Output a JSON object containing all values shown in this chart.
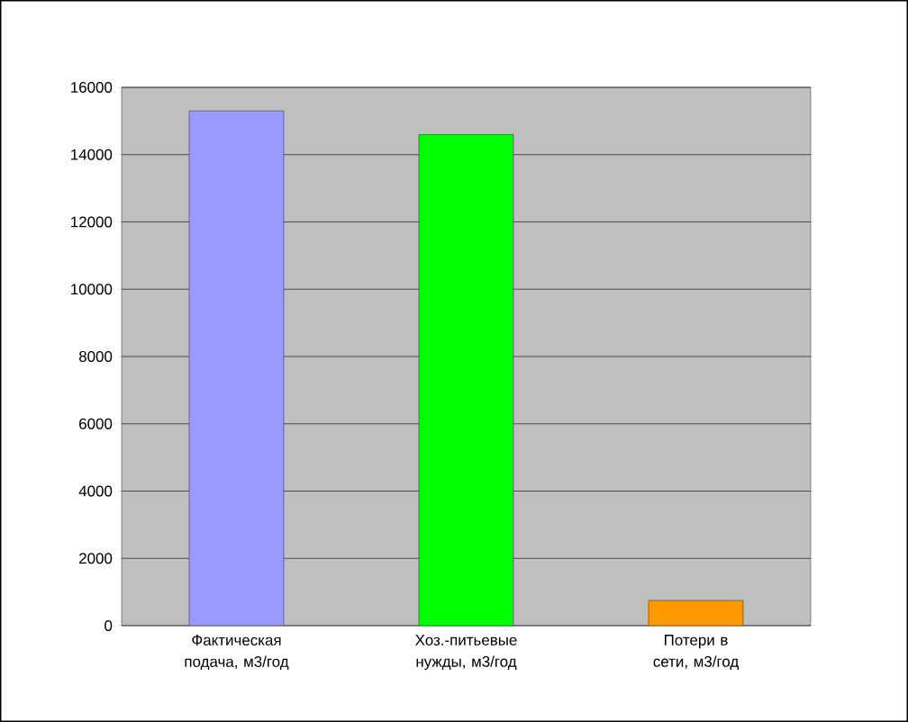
{
  "chart_data": {
    "type": "bar",
    "categories": [
      "Фактическая подача, м3/год",
      "Хоз.-питьевые нужды, м3/год",
      "Потери в сети, м3/год"
    ],
    "values": [
      15300,
      14600,
      750
    ],
    "colors": [
      "#9999ff",
      "#00ff00",
      "#ff9900"
    ],
    "ylim": [
      0,
      16000
    ],
    "yticks": [
      0,
      2000,
      4000,
      6000,
      8000,
      10000,
      12000,
      14000,
      16000
    ],
    "grid": "y"
  }
}
